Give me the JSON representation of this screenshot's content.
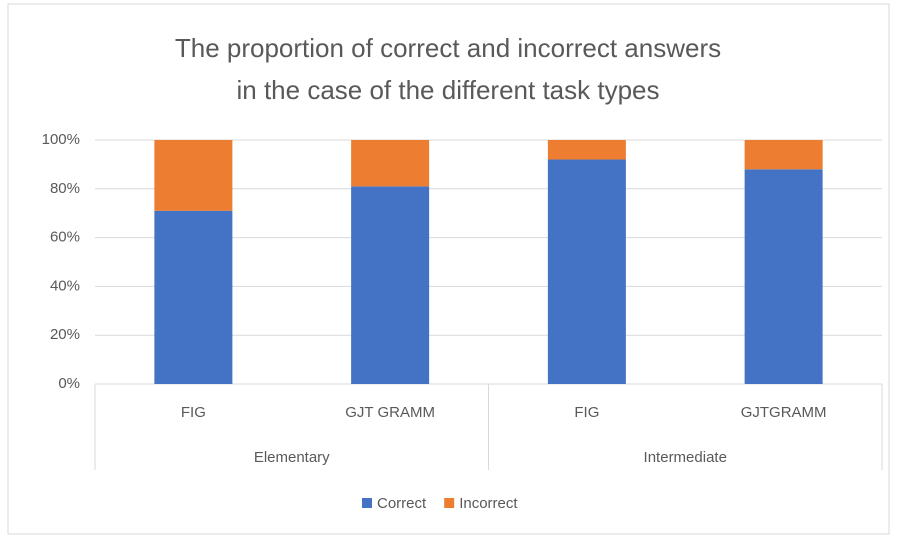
{
  "chart_data": {
    "type": "stacked_bar",
    "title": [
      "The proportion of correct and incorrect answers",
      "in the case of the different task types"
    ],
    "groups": [
      {
        "label": "Elementary",
        "categories": [
          "FIG",
          "GJT GRAMM"
        ]
      },
      {
        "label": "Intermediate",
        "categories": [
          "FIG",
          "GJTGRAMM"
        ]
      }
    ],
    "series": [
      {
        "name": "Correct",
        "color": "#4472c4",
        "values": [
          71,
          81,
          92,
          88
        ]
      },
      {
        "name": "Incorrect",
        "color": "#ed7d31",
        "values": [
          29,
          19,
          8,
          12
        ]
      }
    ],
    "ylim": [
      0,
      100
    ],
    "yticks": [
      {
        "value": 0,
        "label": "0%"
      },
      {
        "value": 20,
        "label": "20%"
      },
      {
        "value": 40,
        "label": "40%"
      },
      {
        "value": 60,
        "label": "60%"
      },
      {
        "value": 80,
        "label": "80%"
      },
      {
        "value": 100,
        "label": "100%"
      }
    ],
    "grid": true,
    "legend": "bottom"
  }
}
